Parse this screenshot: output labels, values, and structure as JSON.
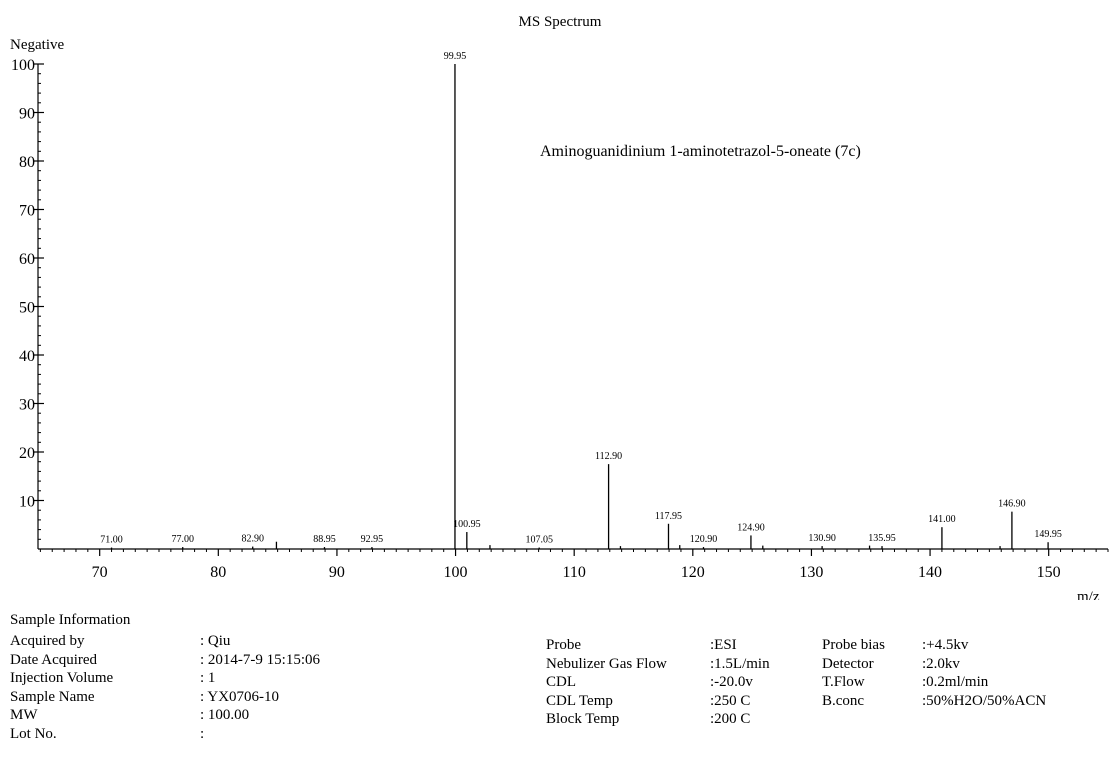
{
  "chart_data": {
    "type": "bar",
    "title": "MS Spectrum",
    "mode_label": "Negative",
    "xlabel": "m/z",
    "ylabel": "",
    "xlim": [
      64.8,
      155.0
    ],
    "ylim": [
      0,
      100
    ],
    "x_ticks": [
      70,
      80,
      90,
      100,
      110,
      120,
      130,
      140,
      150
    ],
    "y_ticks": [
      10,
      20,
      30,
      40,
      50,
      60,
      70,
      80,
      90,
      100
    ],
    "annotation": "Aminoguanidinium 1-aminotetrazol-5-oneate (7c)",
    "peaks": [
      {
        "mz": 71.0,
        "intensity": 0.3,
        "label": "71.00"
      },
      {
        "mz": 77.0,
        "intensity": 0.4,
        "label": "77.00"
      },
      {
        "mz": 82.9,
        "intensity": 0.5,
        "label": "82.90"
      },
      {
        "mz": 84.9,
        "intensity": 1.5,
        "label": ""
      },
      {
        "mz": 88.95,
        "intensity": 0.4,
        "label": "88.95"
      },
      {
        "mz": 92.95,
        "intensity": 0.4,
        "label": "92.95"
      },
      {
        "mz": 99.95,
        "intensity": 100,
        "label": "99.95"
      },
      {
        "mz": 100.95,
        "intensity": 3.5,
        "label": "100.95"
      },
      {
        "mz": 102.9,
        "intensity": 0.8,
        "label": ""
      },
      {
        "mz": 107.05,
        "intensity": 0.3,
        "label": "107.05"
      },
      {
        "mz": 112.9,
        "intensity": 17.5,
        "label": "112.90"
      },
      {
        "mz": 113.9,
        "intensity": 0.6,
        "label": ""
      },
      {
        "mz": 117.95,
        "intensity": 5.2,
        "label": "117.95"
      },
      {
        "mz": 118.9,
        "intensity": 0.8,
        "label": ""
      },
      {
        "mz": 120.9,
        "intensity": 0.4,
        "label": "120.90"
      },
      {
        "mz": 124.9,
        "intensity": 2.8,
        "label": "124.90"
      },
      {
        "mz": 125.9,
        "intensity": 0.7,
        "label": ""
      },
      {
        "mz": 130.9,
        "intensity": 0.6,
        "label": "130.90"
      },
      {
        "mz": 134.9,
        "intensity": 0.7,
        "label": ""
      },
      {
        "mz": 135.95,
        "intensity": 0.6,
        "label": "135.95"
      },
      {
        "mz": 141.0,
        "intensity": 4.5,
        "label": "141.00"
      },
      {
        "mz": 145.9,
        "intensity": 0.6,
        "label": ""
      },
      {
        "mz": 146.9,
        "intensity": 7.7,
        "label": "146.90"
      },
      {
        "mz": 149.95,
        "intensity": 1.4,
        "label": "149.95"
      }
    ]
  },
  "sample_info": {
    "heading": "Sample Information",
    "labels": [
      "Acquired by",
      "Date Acquired",
      "Injection Volume",
      "Sample Name",
      "MW",
      "Lot No."
    ],
    "values": [
      ": Qiu",
      ": 2014-7-9 15:15:06",
      ": 1",
      ": YX0706-10",
      ": 100.00",
      ":"
    ]
  },
  "instrument_info": {
    "labels": [
      "Probe",
      "Nebulizer Gas Flow",
      "CDL",
      "CDL Temp",
      "Block Temp"
    ],
    "values": [
      ":ESI",
      ":1.5L/min",
      ":-20.0v",
      ":250 C",
      ":200 C"
    ]
  },
  "probe_info": {
    "labels": [
      "Probe bias",
      "Detector",
      "T.Flow",
      "B.conc"
    ],
    "values": [
      ":+4.5kv",
      ":2.0kv",
      ":0.2ml/min",
      ":50%H2O/50%ACN"
    ]
  }
}
